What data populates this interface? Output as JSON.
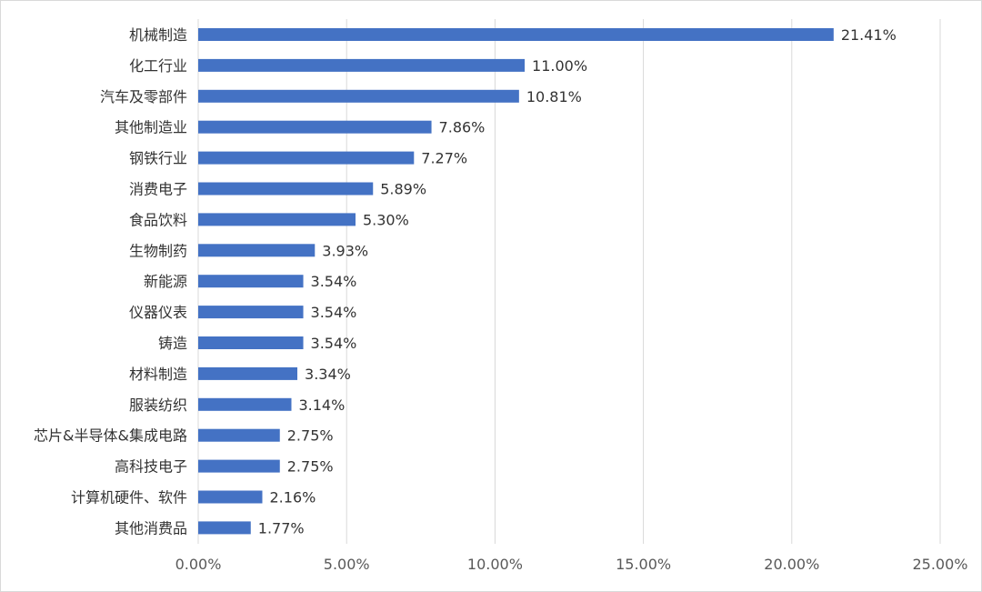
{
  "chart_data": {
    "type": "bar",
    "orientation": "horizontal",
    "title": "",
    "xlabel": "",
    "ylabel": "",
    "xlim": [
      0,
      25
    ],
    "x_ticks": [
      0,
      5,
      10,
      15,
      20,
      25
    ],
    "x_tick_labels": [
      "0.00%",
      "5.00%",
      "10.00%",
      "15.00%",
      "20.00%",
      "25.00%"
    ],
    "grid": "vertical",
    "legend": "none",
    "bar_color": "#4472C4",
    "categories": [
      "机械制造",
      "化工行业",
      "汽车及零部件",
      "其他制造业",
      "钢铁行业",
      "消费电子",
      "食品饮料",
      "生物制药",
      "新能源",
      "仪器仪表",
      "铸造",
      "材料制造",
      "服装纺织",
      "芯片&半导体&集成电路",
      "高科技电子",
      "计算机硬件、软件",
      "其他消费品"
    ],
    "values": [
      21.41,
      11.0,
      10.81,
      7.86,
      7.27,
      5.89,
      5.3,
      3.93,
      3.54,
      3.54,
      3.54,
      3.34,
      3.14,
      2.75,
      2.75,
      2.16,
      1.77
    ],
    "value_labels": [
      "21.41%",
      "11.00%",
      "10.81%",
      "7.86%",
      "7.27%",
      "5.89%",
      "5.30%",
      "3.93%",
      "3.54%",
      "3.54%",
      "3.54%",
      "3.34%",
      "3.14%",
      "2.75%",
      "2.75%",
      "2.16%",
      "1.77%"
    ]
  }
}
